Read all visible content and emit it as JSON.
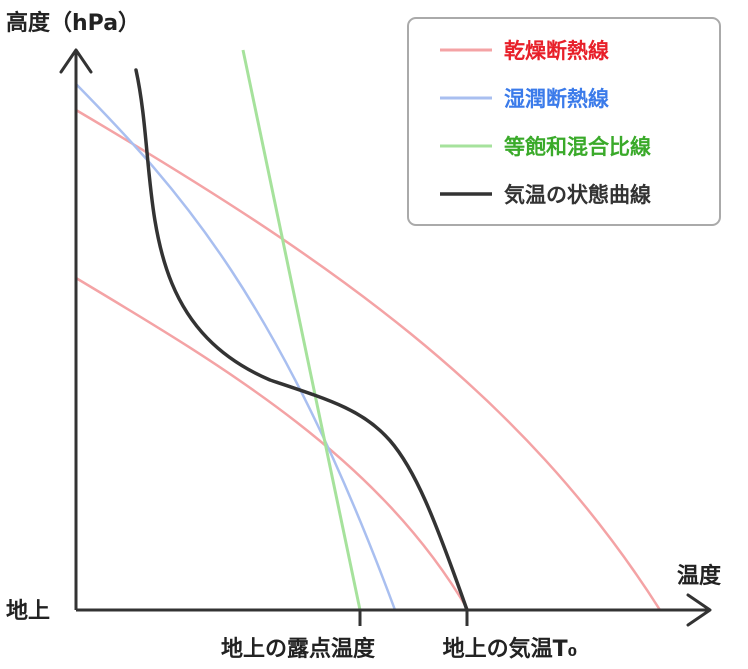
{
  "axes": {
    "y_label": "高度（hPa）",
    "x_label": "温度",
    "ground_label": "地上",
    "x_tick_dewpoint": "地上の露点温度",
    "x_tick_temp": "地上の気温T₀"
  },
  "legend": {
    "items": [
      {
        "label": "乾燥断熱線",
        "color": "#f4a3a5",
        "text_color": "#e8202a"
      },
      {
        "label": "湿潤断熱線",
        "color": "#a9bff0",
        "text_color": "#3b7bea"
      },
      {
        "label": "等飽和混合比線",
        "color": "#a6e29c",
        "text_color": "#3aaa2a"
      },
      {
        "label": "気温の状態曲線",
        "color": "#333333",
        "text_color": "#333333"
      }
    ]
  },
  "colors": {
    "axis": "#333333",
    "legend_border": "#aaaaaa",
    "legend_bg": "#ffffff"
  }
}
